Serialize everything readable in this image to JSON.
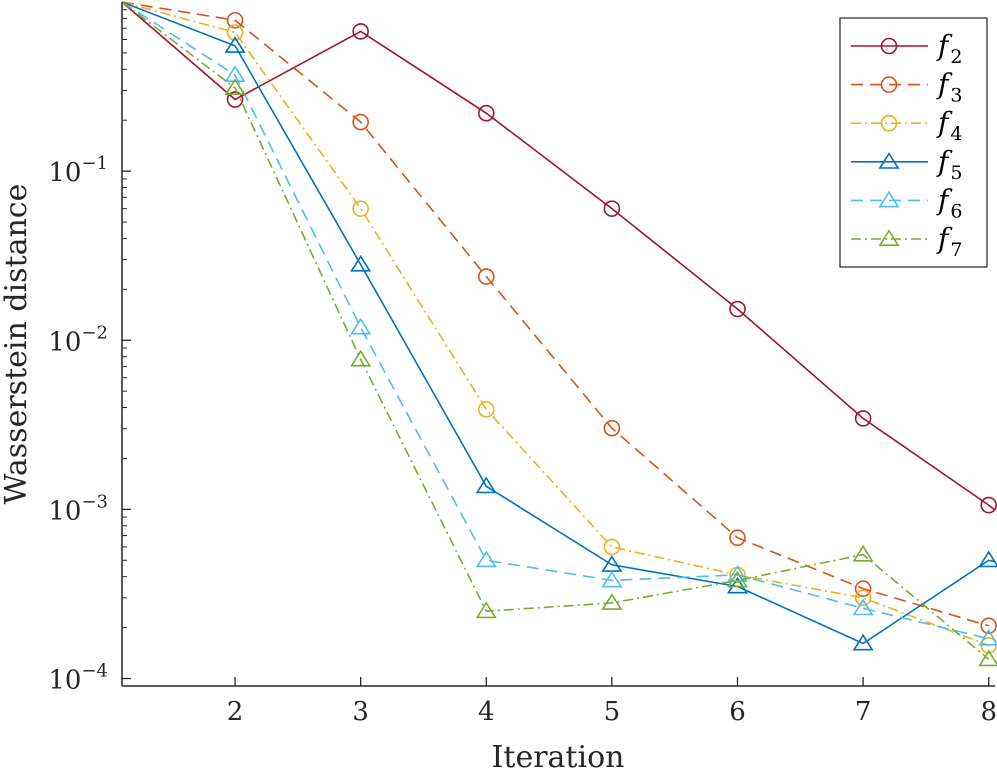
{
  "chart_data": {
    "type": "line",
    "title": "",
    "xlabel": "Iteration",
    "ylabel": "Wasserstein distance",
    "x_scale": "linear",
    "y_scale": "log",
    "xlim": [
      1.1,
      8.05
    ],
    "ylim": [
      9.03e-05,
      1.0
    ],
    "x_ticks": [
      2,
      3,
      4,
      5,
      6,
      7,
      8
    ],
    "x_tick_labels": [
      "2",
      "3",
      "4",
      "5",
      "6",
      "7",
      "8"
    ],
    "y_ticks": [
      0.0001,
      0.001,
      0.01,
      0.1
    ],
    "y_tick_bases": [
      "10",
      "10",
      "10",
      "10"
    ],
    "y_tick_exponents": [
      "−4",
      "−3",
      "−2",
      "−1"
    ],
    "grid": false,
    "legend_position": "top-right",
    "series": [
      {
        "name": "f",
        "sub": "2",
        "color": "#A2142F",
        "dash": "",
        "marker": "circle",
        "x": [
          1.1,
          2,
          3,
          4,
          5,
          6,
          7,
          8,
          8.05
        ],
        "values": [
          1.0,
          0.265,
          0.67,
          0.22,
          0.06,
          0.0153,
          0.00345,
          0.00106,
          0.00099
        ]
      },
      {
        "name": "f",
        "sub": "3",
        "color": "#D95319",
        "dash": "12,7",
        "marker": "circle",
        "x": [
          1.1,
          2,
          3,
          4,
          5,
          6,
          7,
          8
        ],
        "values": [
          1.0,
          0.78,
          0.195,
          0.0238,
          0.00302,
          0.00068,
          0.00034,
          0.000205
        ]
      },
      {
        "name": "f",
        "sub": "4",
        "color": "#EDB120",
        "dash": "10,4,2,4",
        "marker": "circle",
        "x": [
          1.1,
          2,
          3,
          4,
          5,
          6,
          7,
          8
        ],
        "values": [
          1.0,
          0.66,
          0.06,
          0.0039,
          0.0006,
          0.00041,
          0.0003,
          0.000157
        ]
      },
      {
        "name": "f",
        "sub": "5",
        "color": "#0072BD",
        "dash": "",
        "marker": "triangle",
        "x": [
          1.1,
          2,
          3,
          4,
          5,
          6,
          7,
          8,
          8.05
        ],
        "values": [
          1.0,
          0.55,
          0.028,
          0.00137,
          0.00047,
          0.00035,
          0.000161,
          0.0005,
          0.00049
        ]
      },
      {
        "name": "f",
        "sub": "6",
        "color": "#4DBEEE",
        "dash": "12,7",
        "marker": "triangle",
        "x": [
          1.1,
          2,
          3,
          4,
          5,
          6,
          7,
          8
        ],
        "values": [
          1.0,
          0.37,
          0.0119,
          0.0005,
          0.00038,
          0.00041,
          0.00026,
          0.000172
        ]
      },
      {
        "name": "f",
        "sub": "7",
        "color": "#77AC30",
        "dash": "10,4,2,4",
        "marker": "triangle",
        "x": [
          1.1,
          2,
          3,
          4,
          5,
          6,
          7,
          8
        ],
        "values": [
          1.0,
          0.31,
          0.0077,
          0.00025,
          0.00028,
          0.00038,
          0.00054,
          0.00013
        ]
      }
    ]
  }
}
